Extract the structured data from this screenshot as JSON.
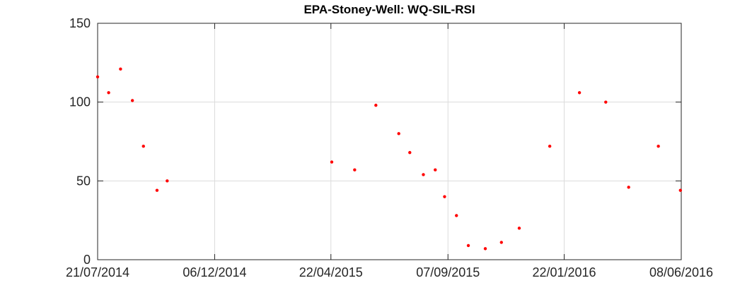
{
  "chart_data": {
    "type": "scatter",
    "title": "EPA-Stoney-Well: WQ-SIL-RSI",
    "xlabel": "",
    "ylabel": "",
    "x_axis_type": "date",
    "xlim": [
      "2014-07-21",
      "2016-06-08"
    ],
    "ylim": [
      0,
      150
    ],
    "x_ticks": [
      "2014-07-21",
      "2014-12-06",
      "2015-04-22",
      "2015-09-07",
      "2016-01-22",
      "2016-06-08"
    ],
    "x_tick_labels": [
      "21/07/2014",
      "06/12/2014",
      "22/04/2015",
      "07/09/2015",
      "22/01/2016",
      "08/06/2016"
    ],
    "y_ticks": [
      0,
      50,
      100,
      150
    ],
    "y_tick_labels": [
      "0",
      "50",
      "100",
      "150"
    ],
    "grid": true,
    "marker_color": "#ff0000",
    "series": [
      {
        "points": [
          {
            "x": "2014-07-21",
            "y": 116
          },
          {
            "x": "2014-08-03",
            "y": 106
          },
          {
            "x": "2014-08-17",
            "y": 121
          },
          {
            "x": "2014-08-31",
            "y": 101
          },
          {
            "x": "2014-09-13",
            "y": 72
          },
          {
            "x": "2014-09-29",
            "y": 44
          },
          {
            "x": "2014-10-11",
            "y": 50
          },
          {
            "x": "2015-04-23",
            "y": 62
          },
          {
            "x": "2015-05-20",
            "y": 57
          },
          {
            "x": "2015-06-14",
            "y": 98
          },
          {
            "x": "2015-07-11",
            "y": 80
          },
          {
            "x": "2015-07-24",
            "y": 68
          },
          {
            "x": "2015-08-09",
            "y": 54
          },
          {
            "x": "2015-08-23",
            "y": 57
          },
          {
            "x": "2015-09-03",
            "y": 40
          },
          {
            "x": "2015-09-17",
            "y": 28
          },
          {
            "x": "2015-10-01",
            "y": 9
          },
          {
            "x": "2015-10-21",
            "y": 7
          },
          {
            "x": "2015-11-09",
            "y": 11
          },
          {
            "x": "2015-11-30",
            "y": 20
          },
          {
            "x": "2016-01-05",
            "y": 72
          },
          {
            "x": "2016-02-09",
            "y": 106
          },
          {
            "x": "2016-03-11",
            "y": 100
          },
          {
            "x": "2016-04-07",
            "y": 46
          },
          {
            "x": "2016-05-12",
            "y": 72
          },
          {
            "x": "2016-06-07",
            "y": 44
          }
        ]
      }
    ]
  }
}
